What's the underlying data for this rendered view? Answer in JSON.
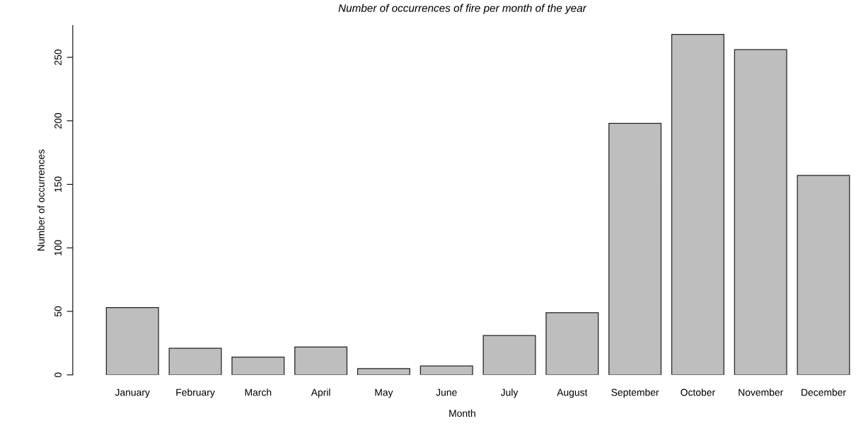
{
  "chart_data": {
    "type": "bar",
    "title": "Number of occurrences of fire per month of the year",
    "xlabel": "Month",
    "ylabel": "Number of occurrences",
    "categories": [
      "January",
      "February",
      "March",
      "April",
      "May",
      "June",
      "July",
      "August",
      "September",
      "October",
      "November",
      "December"
    ],
    "values": [
      53,
      21,
      14,
      22,
      5,
      7,
      31,
      49,
      198,
      268,
      256,
      157
    ],
    "color": "#bebebe",
    "ylim": [
      0,
      275
    ],
    "yticks": [
      0,
      50,
      100,
      150,
      200,
      250
    ],
    "grid": false,
    "legend": false
  }
}
